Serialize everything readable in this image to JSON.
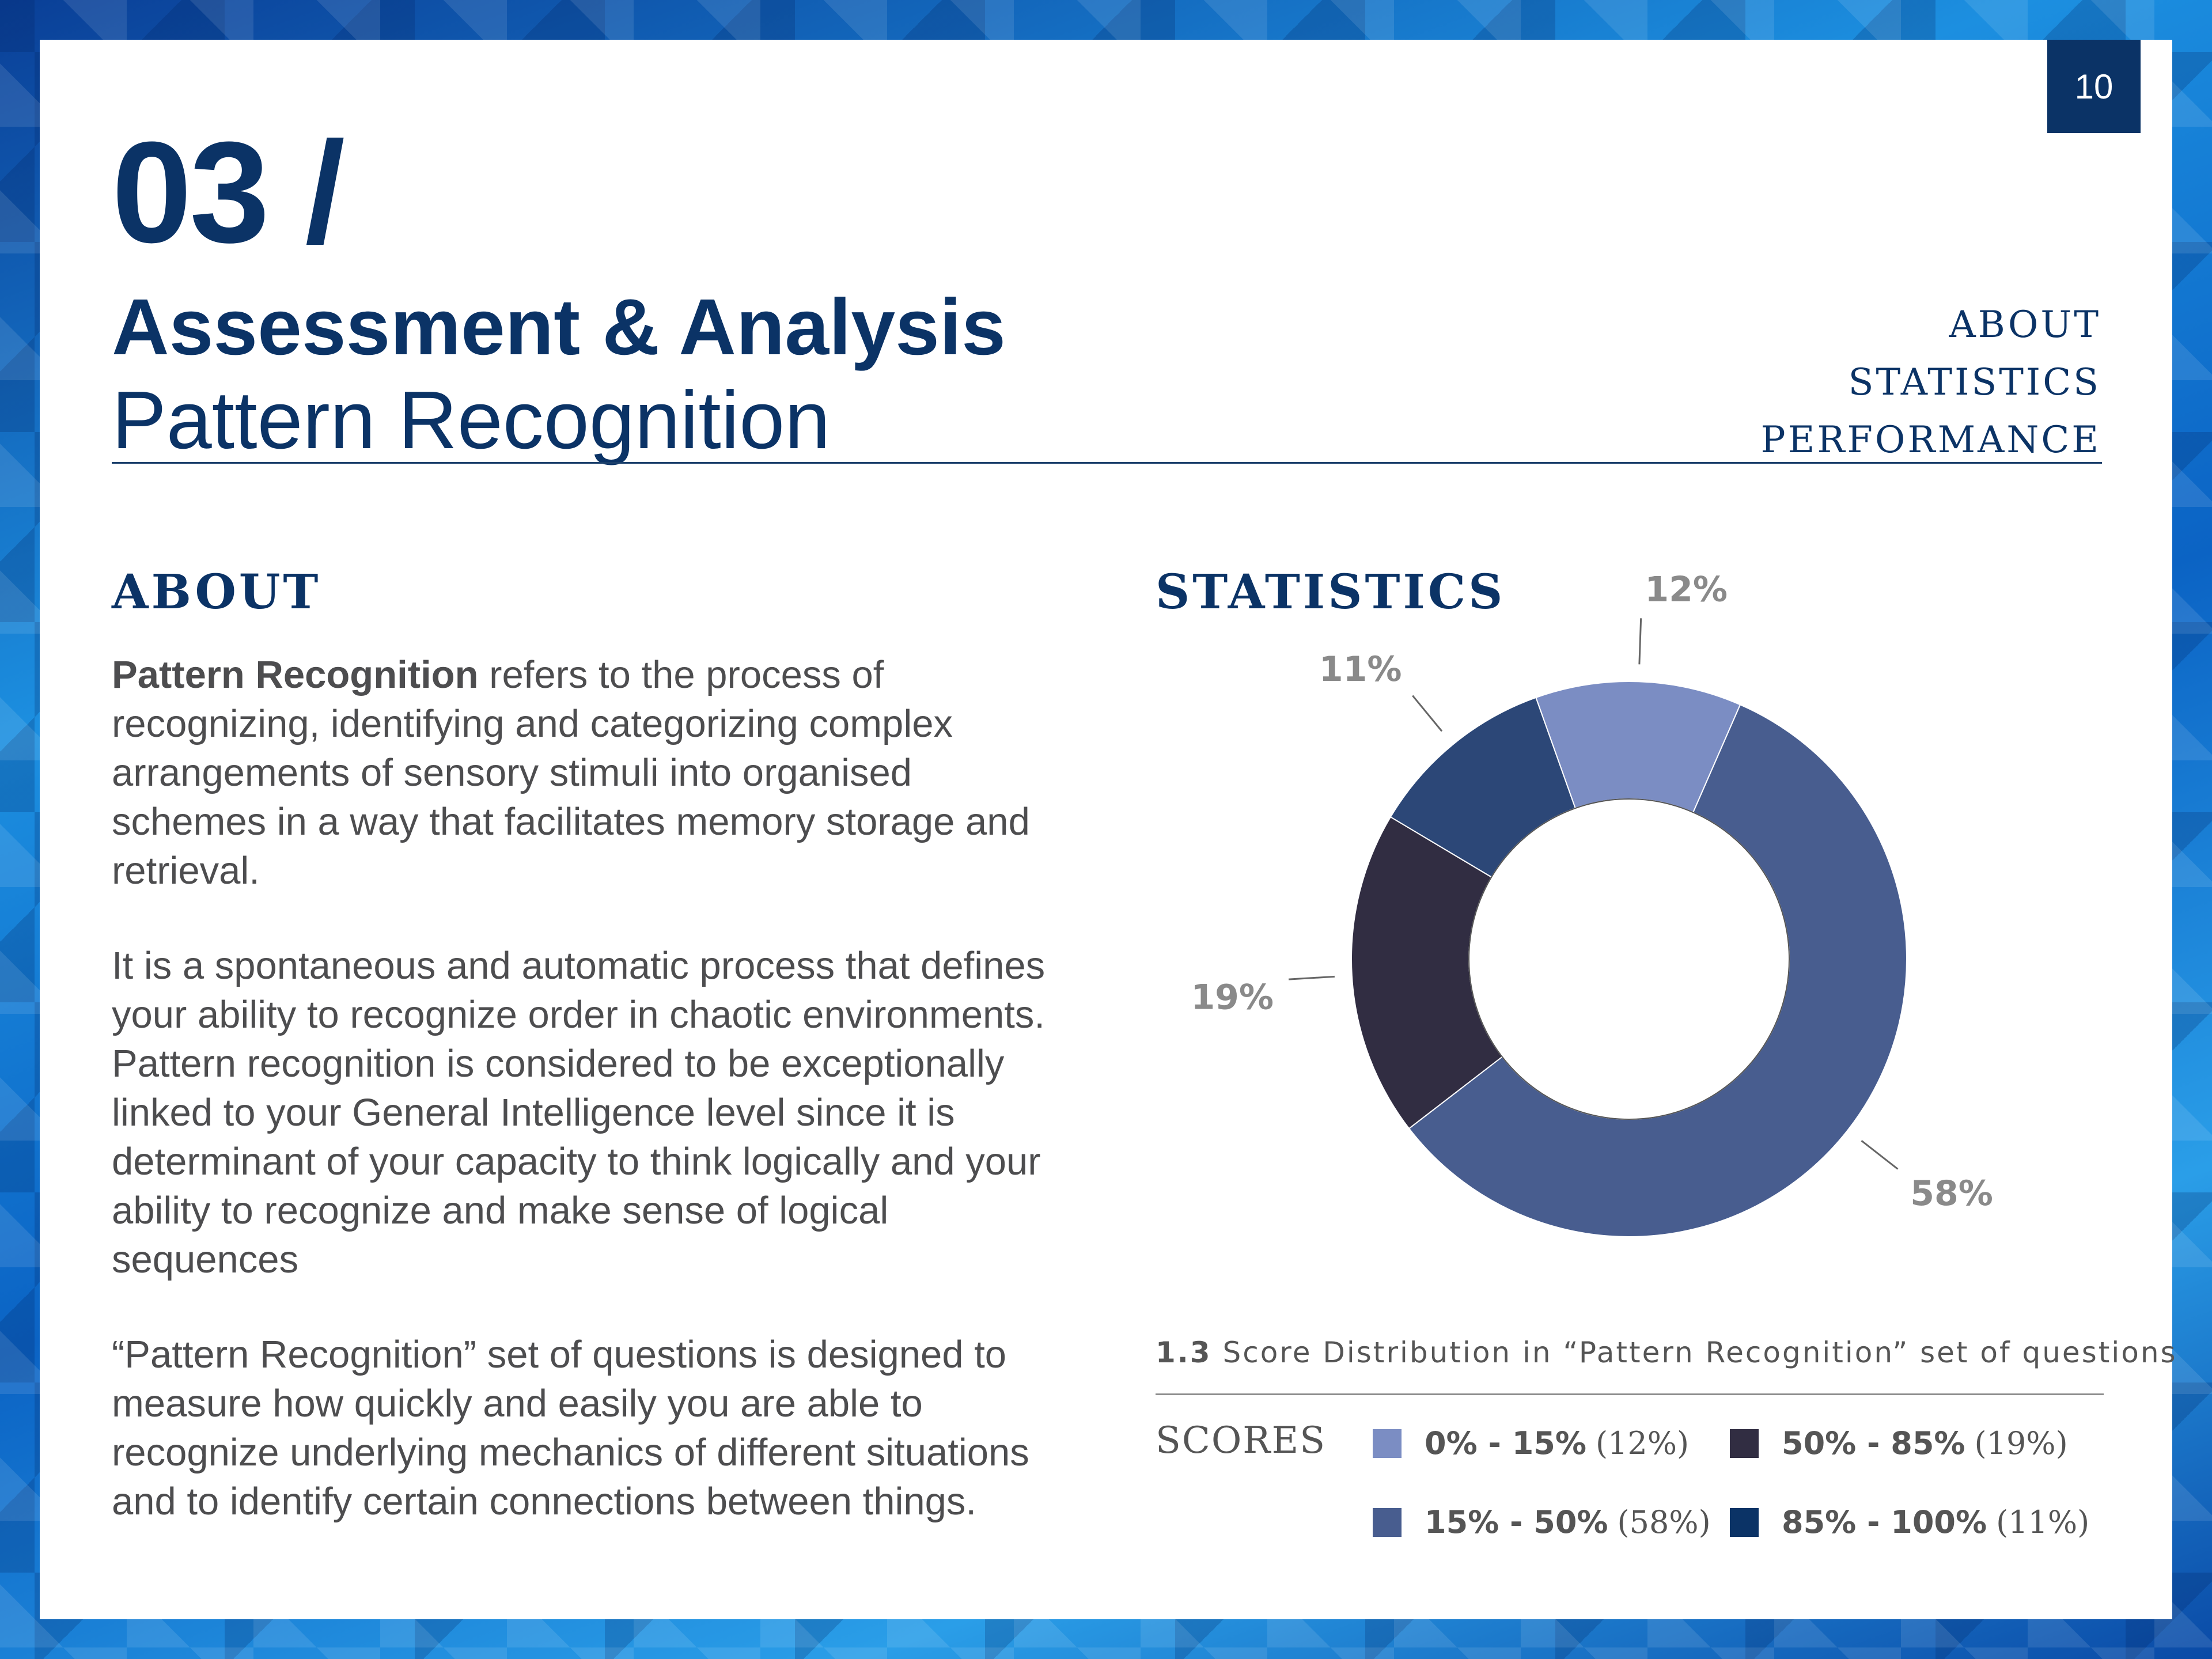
{
  "page_number": "10",
  "section": {
    "number": "03 /",
    "title": "Assessment & Analysis",
    "subtitle": "Pattern Recognition"
  },
  "nav": [
    "ABOUT",
    "STATISTICS",
    "PERFORMANCE"
  ],
  "about": {
    "heading": "ABOUT",
    "p1_bold": "Pattern Recognition",
    "p1_rest": " refers to the process of recognizing, identifying and categorizing complex arrangements of sensory stimuli into organised schemes in a way that facilitates memory storage and retrieval.",
    "p2": "It is a spontaneous and automatic process that defines your ability to recognize order in chaotic environments. Pattern recognition is considered to be exceptionally linked to your General Intelligence level since it is determinant of your capacity to think logically and your ability to recognize and make sense of logical sequences",
    "p3": "“Pattern Recognition” set of questions is designed to measure how quickly and easily you are able to recognize underlying mechanics of different situations and to identify certain connections between things."
  },
  "statistics": {
    "heading": "STATISTICS",
    "caption_num": "1.3",
    "caption_text": " Score Distribution in “Pattern Recognition” set of questions",
    "legend_title": "SCORES"
  },
  "colors": {
    "navy": "#0b3366",
    "slice_0_15": "#7b8dc3",
    "slice_15_50": "#485d8f",
    "slice_50_85": "#312d42",
    "slice_85_100": "#2c4777"
  },
  "chart_data": {
    "type": "pie",
    "style": "donut",
    "categories": [
      "0% - 15%",
      "15% - 50%",
      "50% - 85%",
      "85% - 100%"
    ],
    "values": [
      12,
      58,
      19,
      11
    ],
    "data_labels": [
      "12%",
      "58%",
      "19%",
      "11%"
    ],
    "legend_percents": [
      "(12%)",
      "(58%)",
      "(19%)",
      "(11%)"
    ],
    "legend_position": "bottom"
  }
}
